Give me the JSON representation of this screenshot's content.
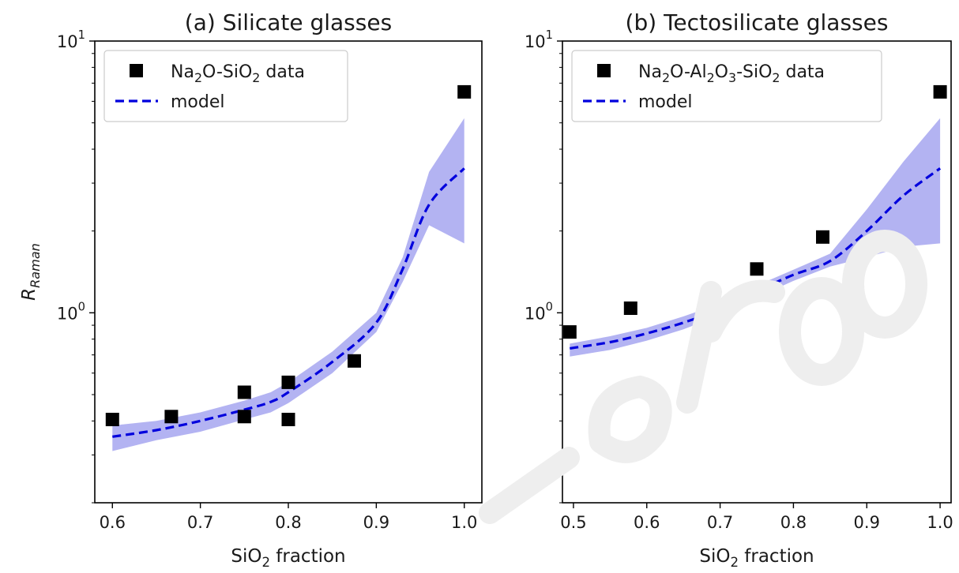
{
  "chart_data": [
    {
      "type": "scatter",
      "title": "(a) Silicate glasses",
      "xlabel": "SiO2 fraction",
      "ylabel": "R_Raman",
      "yscale": "log",
      "xlim": [
        0.58,
        1.02
      ],
      "ylim": [
        0.2,
        10
      ],
      "xticks": [
        "0.6",
        "0.7",
        "0.8",
        "0.9",
        "1.0"
      ],
      "yticks": [
        {
          "base": "10",
          "exp": "0",
          "value": 1
        },
        {
          "base": "10",
          "exp": "1",
          "value": 10
        }
      ],
      "legend": {
        "placement": "top-left",
        "entries": [
          {
            "label": "Na2O-SiO2 data",
            "marker": "square",
            "color": "#000000"
          },
          {
            "label": "model",
            "marker": "dashed-line",
            "color": "#0000dd"
          }
        ]
      },
      "series": [
        {
          "name": "Na2O-SiO2 data",
          "kind": "points",
          "color": "#000000",
          "x": [
            0.6,
            0.667,
            0.75,
            0.75,
            0.8,
            0.8,
            0.875,
            1.0
          ],
          "y": [
            0.405,
            0.415,
            0.415,
            0.51,
            0.405,
            0.555,
            0.665,
            6.5
          ]
        },
        {
          "name": "model",
          "kind": "dashed-line",
          "color": "#0000dd",
          "x": [
            0.6,
            0.65,
            0.7,
            0.75,
            0.78,
            0.8,
            0.85,
            0.9,
            0.93,
            0.96,
            1.0
          ],
          "y": [
            0.35,
            0.37,
            0.4,
            0.44,
            0.47,
            0.51,
            0.66,
            0.92,
            1.45,
            2.5,
            3.4
          ]
        },
        {
          "name": "model uncertainty",
          "kind": "band",
          "color": "#9999ee",
          "x": [
            0.6,
            0.65,
            0.7,
            0.75,
            0.78,
            0.8,
            0.85,
            0.9,
            0.93,
            0.96,
            1.0
          ],
          "lower": [
            0.31,
            0.34,
            0.365,
            0.405,
            0.43,
            0.465,
            0.6,
            0.85,
            1.3,
            2.1,
            1.8
          ],
          "upper": [
            0.385,
            0.4,
            0.43,
            0.475,
            0.51,
            0.555,
            0.72,
            1.0,
            1.6,
            3.3,
            5.2
          ]
        }
      ]
    },
    {
      "type": "scatter",
      "title": "(b) Tectosilicate glasses",
      "xlabel": "SiO2 fraction",
      "ylabel": "",
      "yscale": "log",
      "xlim": [
        0.485,
        1.015
      ],
      "ylim": [
        0.2,
        10
      ],
      "xticks": [
        "0.5",
        "0.6",
        "0.7",
        "0.8",
        "0.9",
        "1.0"
      ],
      "yticks": [
        {
          "base": "10",
          "exp": "0",
          "value": 1
        },
        {
          "base": "10",
          "exp": "1",
          "value": 10
        }
      ],
      "legend": {
        "placement": "top-left",
        "entries": [
          {
            "label": "Na2O-Al2O3-SiO2 data",
            "marker": "square",
            "color": "#000000"
          },
          {
            "label": "model",
            "marker": "dashed-line",
            "color": "#0000dd"
          }
        ]
      },
      "series": [
        {
          "name": "Na2O-Al2O3-SiO2 data",
          "kind": "points",
          "color": "#000000",
          "x": [
            0.495,
            0.578,
            0.671,
            0.75,
            0.84,
            1.0
          ],
          "y": [
            0.85,
            1.04,
            0.775,
            1.45,
            1.9,
            6.5
          ]
        },
        {
          "name": "model",
          "kind": "dashed-line",
          "color": "#0000dd",
          "x": [
            0.495,
            0.55,
            0.6,
            0.65,
            0.7,
            0.75,
            0.8,
            0.85,
            0.9,
            0.95,
            1.0
          ],
          "y": [
            0.74,
            0.78,
            0.84,
            0.92,
            1.03,
            1.2,
            1.38,
            1.55,
            2.0,
            2.7,
            3.4
          ]
        },
        {
          "name": "model uncertainty",
          "kind": "band",
          "color": "#9999ee",
          "x": [
            0.495,
            0.55,
            0.6,
            0.65,
            0.7,
            0.75,
            0.8,
            0.85,
            0.9,
            0.95,
            1.0
          ],
          "lower": [
            0.69,
            0.73,
            0.79,
            0.87,
            0.98,
            1.14,
            1.31,
            1.48,
            1.6,
            1.75,
            1.8
          ],
          "upper": [
            0.77,
            0.82,
            0.88,
            0.97,
            1.08,
            1.26,
            1.44,
            1.65,
            2.4,
            3.6,
            5.2
          ]
        }
      ]
    }
  ]
}
